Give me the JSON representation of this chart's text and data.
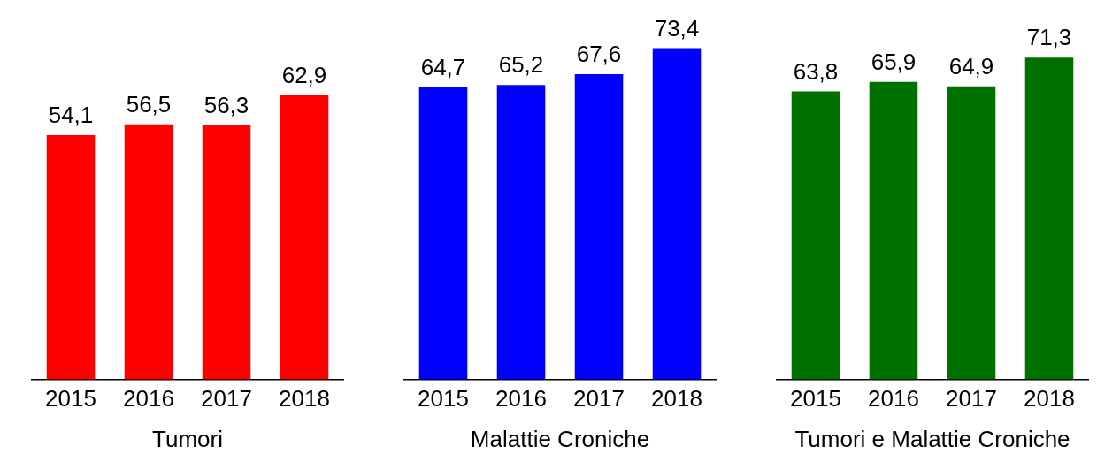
{
  "chart_data": [
    {
      "type": "bar",
      "xlabel": "Tumori",
      "categories": [
        "2015",
        "2016",
        "2017",
        "2018"
      ],
      "values": [
        54.1,
        56.5,
        56.3,
        62.9
      ],
      "color": "#ff0000",
      "value_labels": [
        "54,1",
        "56,5",
        "56,3",
        "62,9"
      ],
      "tick_labels": "x",
      "grid": false
    },
    {
      "type": "bar",
      "xlabel": "Malattie Croniche",
      "categories": [
        "2015",
        "2016",
        "2017",
        "2018"
      ],
      "values": [
        64.7,
        65.2,
        67.6,
        73.4
      ],
      "color": "#0000ff",
      "value_labels": [
        "64,7",
        "65,2",
        "67,6",
        "73,4"
      ],
      "tick_labels": "x",
      "grid": false
    },
    {
      "type": "bar",
      "xlabel": "Tumori e Malattie Croniche",
      "categories": [
        "2015",
        "2016",
        "2017",
        "2018"
      ],
      "values": [
        63.8,
        65.9,
        64.9,
        71.3
      ],
      "color": "#007000",
      "value_labels": [
        "63,8",
        "65,9",
        "64,9",
        "71,3"
      ],
      "tick_labels": "x",
      "grid": false
    }
  ]
}
